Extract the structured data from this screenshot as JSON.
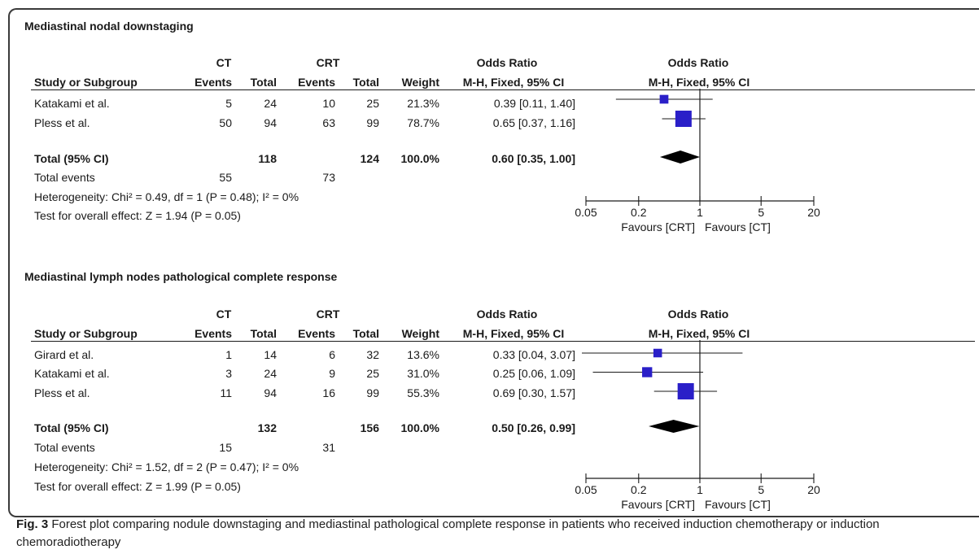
{
  "panels": [
    {
      "title": "Mediastinal nodal downstaging",
      "header": {
        "ct": "CT",
        "crt": "CRT",
        "or_left": "Odds Ratio",
        "or_right": "Odds Ratio",
        "study": "Study or Subgroup",
        "events": "Events",
        "total": "Total",
        "weight": "Weight",
        "method_left": "M-H, Fixed, 95% CI",
        "method_right": "M-H, Fixed, 95% CI"
      },
      "studies": [
        {
          "name": "Katakami et al.",
          "ct_events": "5",
          "ct_total": "24",
          "crt_events": "10",
          "crt_total": "25",
          "weight": "21.3%",
          "ci_text": "0.39 [0.11, 1.40]"
        },
        {
          "name": "Pless et al.",
          "ct_events": "50",
          "ct_total": "94",
          "crt_events": "63",
          "crt_total": "99",
          "weight": "78.7%",
          "ci_text": "0.65 [0.37, 1.16]"
        }
      ],
      "total": {
        "label": "Total (95% CI)",
        "ct_total": "118",
        "crt_total": "124",
        "weight": "100.0%",
        "ci_text": "0.60 [0.35, 1.00]"
      },
      "total_events": {
        "label": "Total events",
        "ct": "55",
        "crt": "73"
      },
      "heterogeneity": "Heterogeneity: Chi² = 0.49, df = 1 (P = 0.48); I² = 0%",
      "overall": "Test for overall effect: Z = 1.94 (P = 0.05)",
      "axis": {
        "ticks": [
          "0.05",
          "0.2",
          "1",
          "5",
          "20"
        ],
        "favours_left": "Favours [CRT]",
        "favours_right": "Favours [CT]"
      }
    },
    {
      "title": "Mediastinal lymph nodes pathological complete response",
      "header": {
        "ct": "CT",
        "crt": "CRT",
        "or_left": "Odds Ratio",
        "or_right": "Odds Ratio",
        "study": "Study or Subgroup",
        "events": "Events",
        "total": "Total",
        "weight": "Weight",
        "method_left": "M-H, Fixed, 95% CI",
        "method_right": "M-H, Fixed, 95% CI"
      },
      "studies": [
        {
          "name": "Girard et al.",
          "ct_events": "1",
          "ct_total": "14",
          "crt_events": "6",
          "crt_total": "32",
          "weight": "13.6%",
          "ci_text": "0.33 [0.04, 3.07]"
        },
        {
          "name": "Katakami et al.",
          "ct_events": "3",
          "ct_total": "24",
          "crt_events": "9",
          "crt_total": "25",
          "weight": "31.0%",
          "ci_text": "0.25 [0.06, 1.09]"
        },
        {
          "name": "Pless et al.",
          "ct_events": "11",
          "ct_total": "94",
          "crt_events": "16",
          "crt_total": "99",
          "weight": "55.3%",
          "ci_text": "0.69 [0.30, 1.57]"
        }
      ],
      "total": {
        "label": "Total (95% CI)",
        "ct_total": "132",
        "crt_total": "156",
        "weight": "100.0%",
        "ci_text": "0.50 [0.26, 0.99]"
      },
      "total_events": {
        "label": "Total events",
        "ct": "15",
        "crt": "31"
      },
      "heterogeneity": "Heterogeneity: Chi² = 1.52, df = 2 (P = 0.47); I² = 0%",
      "overall": "Test for overall effect: Z = 1.99 (P = 0.05)",
      "axis": {
        "ticks": [
          "0.05",
          "0.2",
          "1",
          "5",
          "20"
        ],
        "favours_left": "Favours [CRT]",
        "favours_right": "Favours [CT]"
      }
    }
  ],
  "caption": {
    "label": "Fig. 3",
    "text": " Forest plot comparing nodule downstaging and mediastinal pathological complete response in patients who received induction chemotherapy or induction chemoradiotherapy"
  },
  "chart_data": [
    {
      "type": "forest",
      "scale": "log",
      "xlim": [
        0.05,
        20
      ],
      "x_ticks": [
        0.05,
        0.2,
        1,
        5,
        20
      ],
      "reference_line": 1,
      "marker_color": "#2a1fc8",
      "studies": [
        {
          "name": "Katakami et al.",
          "or": 0.39,
          "lower": 0.11,
          "upper": 1.4,
          "weight": 21.3
        },
        {
          "name": "Pless et al.",
          "or": 0.65,
          "lower": 0.37,
          "upper": 1.16,
          "weight": 78.7
        }
      ],
      "pooled": {
        "or": 0.6,
        "lower": 0.35,
        "upper": 1.0
      }
    },
    {
      "type": "forest",
      "scale": "log",
      "xlim": [
        0.05,
        20
      ],
      "x_ticks": [
        0.05,
        0.2,
        1,
        5,
        20
      ],
      "reference_line": 1,
      "marker_color": "#2a1fc8",
      "studies": [
        {
          "name": "Girard et al.",
          "or": 0.33,
          "lower": 0.04,
          "upper": 3.07,
          "weight": 13.6
        },
        {
          "name": "Katakami et al.",
          "or": 0.25,
          "lower": 0.06,
          "upper": 1.09,
          "weight": 31.0
        },
        {
          "name": "Pless et al.",
          "or": 0.69,
          "lower": 0.3,
          "upper": 1.57,
          "weight": 55.3
        }
      ],
      "pooled": {
        "or": 0.5,
        "lower": 0.26,
        "upper": 0.99
      }
    }
  ]
}
